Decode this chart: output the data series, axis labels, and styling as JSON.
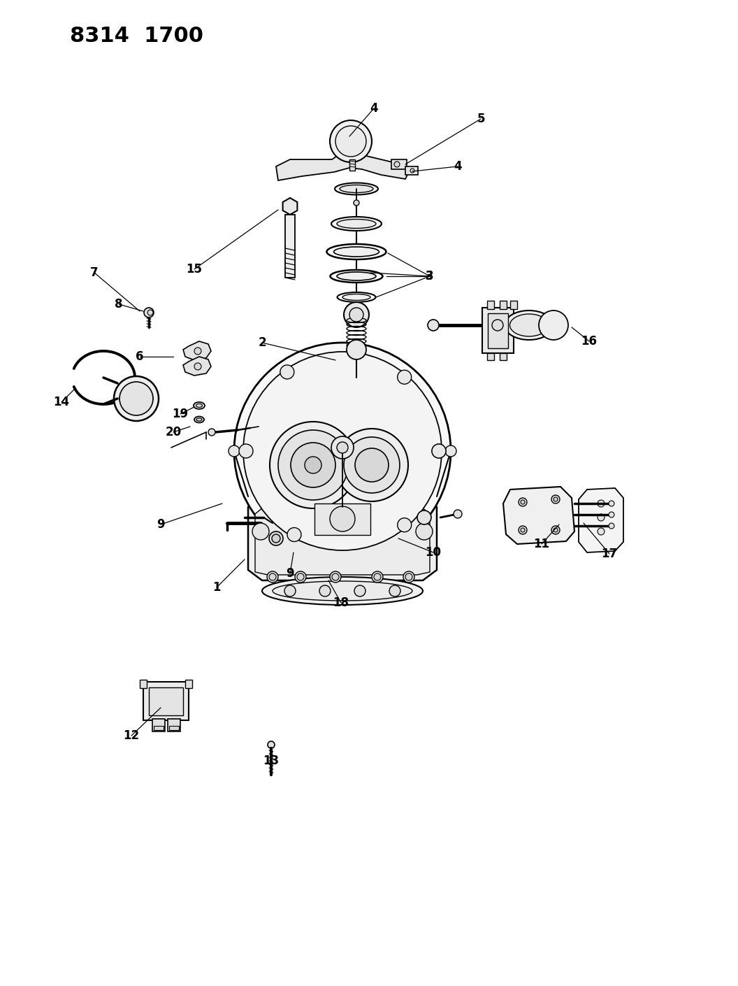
{
  "title_text": "8314  1700",
  "bg_color": "#ffffff",
  "line_color": "#000000",
  "fig_width": 10.56,
  "fig_height": 14.1,
  "dpi": 100,
  "leaders": [
    [
      310,
      840,
      350,
      800,
      "1"
    ],
    [
      375,
      490,
      480,
      515,
      "2"
    ],
    [
      615,
      395,
      530,
      390,
      "3"
    ],
    [
      535,
      155,
      500,
      195,
      "4"
    ],
    [
      688,
      170,
      580,
      235,
      "5"
    ],
    [
      655,
      238,
      590,
      245,
      "4"
    ],
    [
      200,
      510,
      248,
      510,
      "6"
    ],
    [
      135,
      390,
      200,
      445,
      "7"
    ],
    [
      170,
      435,
      205,
      445,
      "8"
    ],
    [
      230,
      750,
      318,
      720,
      "9"
    ],
    [
      415,
      820,
      420,
      790,
      "9"
    ],
    [
      620,
      790,
      570,
      770,
      "10"
    ],
    [
      775,
      778,
      800,
      750,
      "11"
    ],
    [
      188,
      1052,
      230,
      1012,
      "12"
    ],
    [
      388,
      1088,
      388,
      1075,
      "13"
    ],
    [
      88,
      575,
      108,
      555,
      "14"
    ],
    [
      278,
      385,
      398,
      300,
      "15"
    ],
    [
      843,
      488,
      818,
      468,
      "16"
    ],
    [
      872,
      792,
      835,
      748,
      "17"
    ],
    [
      488,
      862,
      470,
      830,
      "18"
    ],
    [
      258,
      592,
      278,
      582,
      "19"
    ],
    [
      248,
      618,
      272,
      610,
      "20"
    ]
  ]
}
